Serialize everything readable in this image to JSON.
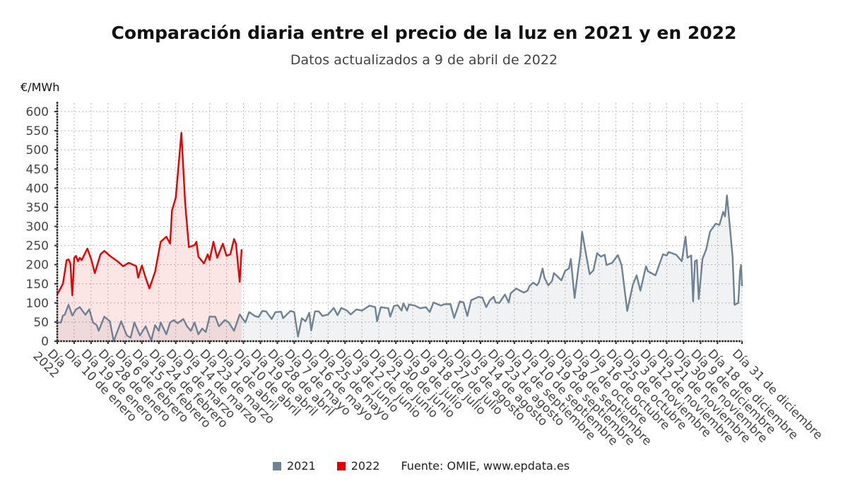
{
  "chart_data": {
    "type": "line",
    "title": "Comparación diaria entre el precio de la luz en 2021 y en 2022",
    "subtitle": "Datos actualizados a 9 de abril de 2022",
    "ylabel": "€/MWh",
    "xlabel": "",
    "ylim": [
      0,
      600
    ],
    "yticks": [
      0,
      50,
      100,
      150,
      200,
      250,
      300,
      350,
      400,
      450,
      500,
      550,
      600
    ],
    "xlim_day_of_year": [
      1,
      365
    ],
    "grid": true,
    "legend_position": "bottom",
    "xticks": [
      {
        "day": 1,
        "label": "Día\n2022"
      },
      {
        "day": 10,
        "label": "Día 10 de enero"
      },
      {
        "day": 19,
        "label": "Día 19 de enero"
      },
      {
        "day": 28,
        "label": "Día 28 de enero"
      },
      {
        "day": 37,
        "label": "Día 6 de febrero"
      },
      {
        "day": 46,
        "label": "Día 15 de febrero"
      },
      {
        "day": 55,
        "label": "Día 24 de febrero"
      },
      {
        "day": 64,
        "label": "Día 5 de marzo"
      },
      {
        "day": 73,
        "label": "Día 14 de marzo"
      },
      {
        "day": 82,
        "label": "Día 23 de marzo"
      },
      {
        "day": 91,
        "label": "Día 1 de abril"
      },
      {
        "day": 100,
        "label": "Día 10 de abril"
      },
      {
        "day": 109,
        "label": "Día 19 de abril"
      },
      {
        "day": 118,
        "label": "Día 28 de abril"
      },
      {
        "day": 127,
        "label": "Día 7 de mayo"
      },
      {
        "day": 136,
        "label": "Día 16 de mayo"
      },
      {
        "day": 145,
        "label": "Día 25 de mayo"
      },
      {
        "day": 154,
        "label": "Día 3 de junio"
      },
      {
        "day": 163,
        "label": "Día 12 de junio"
      },
      {
        "day": 172,
        "label": "Día 21 de junio"
      },
      {
        "day": 181,
        "label": "Día 30 de junio"
      },
      {
        "day": 190,
        "label": "Día 9 de julio"
      },
      {
        "day": 199,
        "label": "Día 18 de julio"
      },
      {
        "day": 208,
        "label": "Día 27 de julio"
      },
      {
        "day": 217,
        "label": "Día 5 de agosto"
      },
      {
        "day": 226,
        "label": "Día 14 de agosto"
      },
      {
        "day": 235,
        "label": "Día 23 de agosto"
      },
      {
        "day": 244,
        "label": "Día 1 de septiembre"
      },
      {
        "day": 253,
        "label": "Día 10 de septiembre"
      },
      {
        "day": 262,
        "label": "Día 19 de septiembre"
      },
      {
        "day": 271,
        "label": "Día 28 de septiembre"
      },
      {
        "day": 280,
        "label": "Día 7 de octubre"
      },
      {
        "day": 289,
        "label": "Día 16 de octubre"
      },
      {
        "day": 298,
        "label": "Día 25 de octubre"
      },
      {
        "day": 307,
        "label": "Día 3 de noviembre"
      },
      {
        "day": 316,
        "label": "Día 12 de noviembre"
      },
      {
        "day": 325,
        "label": "Día 21 de noviembre"
      },
      {
        "day": 334,
        "label": "Día 30 de noviembre"
      },
      {
        "day": 343,
        "label": "Día 9 de diciembre"
      },
      {
        "day": 352,
        "label": "Día 18 de diciembre"
      },
      {
        "day": 365,
        "label": "Día 31 de diciembre"
      }
    ],
    "series": [
      {
        "name": "2021",
        "color": "#6e8293",
        "points": [
          [
            1,
            49
          ],
          [
            3,
            49
          ],
          [
            4,
            67
          ],
          [
            5,
            69
          ],
          [
            7,
            95
          ],
          [
            9,
            67
          ],
          [
            11,
            83
          ],
          [
            13,
            89
          ],
          [
            16,
            69
          ],
          [
            18,
            83
          ],
          [
            20,
            49
          ],
          [
            22,
            42
          ],
          [
            23,
            27
          ],
          [
            26,
            64
          ],
          [
            29,
            52
          ],
          [
            31,
            0
          ],
          [
            35,
            52
          ],
          [
            38,
            15
          ],
          [
            40,
            9
          ],
          [
            42,
            49
          ],
          [
            45,
            15
          ],
          [
            48,
            39
          ],
          [
            51,
            2
          ],
          [
            53,
            42
          ],
          [
            55,
            27
          ],
          [
            56,
            49
          ],
          [
            59,
            18
          ],
          [
            61,
            49
          ],
          [
            63,
            55
          ],
          [
            65,
            47
          ],
          [
            68,
            58
          ],
          [
            70,
            39
          ],
          [
            72,
            27
          ],
          [
            74,
            49
          ],
          [
            76,
            18
          ],
          [
            78,
            33
          ],
          [
            80,
            24
          ],
          [
            82,
            64
          ],
          [
            85,
            64
          ],
          [
            87,
            39
          ],
          [
            90,
            55
          ],
          [
            92,
            50
          ],
          [
            95,
            27
          ],
          [
            98,
            70
          ],
          [
            101,
            49
          ],
          [
            103,
            76
          ],
          [
            106,
            66
          ],
          [
            108,
            63
          ],
          [
            110,
            79
          ],
          [
            112,
            78
          ],
          [
            115,
            58
          ],
          [
            117,
            76
          ],
          [
            120,
            77
          ],
          [
            121,
            60
          ],
          [
            125,
            79
          ],
          [
            127,
            76
          ],
          [
            129,
            12
          ],
          [
            131,
            60
          ],
          [
            133,
            52
          ],
          [
            135,
            74
          ],
          [
            136,
            28
          ],
          [
            138,
            78
          ],
          [
            140,
            78
          ],
          [
            142,
            66
          ],
          [
            145,
            70
          ],
          [
            148,
            87
          ],
          [
            150,
            68
          ],
          [
            152,
            87
          ],
          [
            155,
            80
          ],
          [
            157,
            70
          ],
          [
            160,
            83
          ],
          [
            163,
            80
          ],
          [
            167,
            93
          ],
          [
            170,
            89
          ],
          [
            171,
            52
          ],
          [
            173,
            89
          ],
          [
            177,
            86
          ],
          [
            178,
            64
          ],
          [
            180,
            92
          ],
          [
            182,
            94
          ],
          [
            184,
            80
          ],
          [
            185,
            99
          ],
          [
            187,
            80
          ],
          [
            188,
            96
          ],
          [
            191,
            93
          ],
          [
            194,
            86
          ],
          [
            197,
            89
          ],
          [
            199,
            76
          ],
          [
            201,
            101
          ],
          [
            205,
            93
          ],
          [
            207,
            97
          ],
          [
            210,
            97
          ],
          [
            212,
            61
          ],
          [
            215,
            104
          ],
          [
            217,
            101
          ],
          [
            219,
            66
          ],
          [
            221,
            107
          ],
          [
            225,
            116
          ],
          [
            227,
            114
          ],
          [
            229,
            89
          ],
          [
            231,
            107
          ],
          [
            233,
            116
          ],
          [
            234,
            101
          ],
          [
            236,
            100
          ],
          [
            239,
            122
          ],
          [
            241,
            101
          ],
          [
            242,
            125
          ],
          [
            245,
            138
          ],
          [
            247,
            132
          ],
          [
            249,
            127
          ],
          [
            251,
            132
          ],
          [
            252,
            144
          ],
          [
            254,
            153
          ],
          [
            256,
            146
          ],
          [
            257,
            153
          ],
          [
            259,
            190
          ],
          [
            260,
            166
          ],
          [
            262,
            146
          ],
          [
            264,
            157
          ],
          [
            265,
            178
          ],
          [
            267,
            169
          ],
          [
            269,
            159
          ],
          [
            271,
            184
          ],
          [
            273,
            190
          ],
          [
            274,
            215
          ],
          [
            276,
            113
          ],
          [
            278,
            190
          ],
          [
            279,
            224
          ],
          [
            280,
            286
          ],
          [
            282,
            230
          ],
          [
            284,
            175
          ],
          [
            286,
            185
          ],
          [
            288,
            230
          ],
          [
            290,
            221
          ],
          [
            292,
            226
          ],
          [
            293,
            199
          ],
          [
            296,
            205
          ],
          [
            299,
            225
          ],
          [
            301,
            199
          ],
          [
            304,
            79
          ],
          [
            307,
            148
          ],
          [
            309,
            172
          ],
          [
            311,
            132
          ],
          [
            314,
            196
          ],
          [
            315,
            183
          ],
          [
            319,
            172
          ],
          [
            323,
            227
          ],
          [
            325,
            224
          ],
          [
            326,
            233
          ],
          [
            330,
            226
          ],
          [
            333,
            209
          ],
          [
            335,
            273
          ],
          [
            336,
            218
          ],
          [
            338,
            224
          ],
          [
            339,
            104
          ],
          [
            340,
            209
          ],
          [
            341,
            212
          ],
          [
            342,
            110
          ],
          [
            344,
            215
          ],
          [
            346,
            240
          ],
          [
            348,
            286
          ],
          [
            351,
            307
          ],
          [
            353,
            304
          ],
          [
            355,
            338
          ],
          [
            356,
            326
          ],
          [
            357,
            381
          ],
          [
            360,
            221
          ],
          [
            361,
            95
          ],
          [
            363,
            100
          ],
          [
            364,
            184
          ],
          [
            364.5,
            199
          ],
          [
            365,
            144
          ]
        ]
      },
      {
        "name": "2022",
        "color": "#e60000",
        "points": [
          [
            1,
            122
          ],
          [
            4,
            150
          ],
          [
            6,
            212
          ],
          [
            7,
            214
          ],
          [
            8,
            203
          ],
          [
            9,
            120
          ],
          [
            10,
            218
          ],
          [
            11,
            223
          ],
          [
            12,
            209
          ],
          [
            13,
            218
          ],
          [
            14,
            212
          ],
          [
            17,
            242
          ],
          [
            19,
            215
          ],
          [
            21,
            178
          ],
          [
            24,
            227
          ],
          [
            26,
            236
          ],
          [
            29,
            223
          ],
          [
            33,
            209
          ],
          [
            36,
            196
          ],
          [
            39,
            205
          ],
          [
            43,
            196
          ],
          [
            44,
            166
          ],
          [
            46,
            198
          ],
          [
            48,
            166
          ],
          [
            50,
            138
          ],
          [
            53,
            181
          ],
          [
            56,
            260
          ],
          [
            59,
            273
          ],
          [
            61,
            255
          ],
          [
            62,
            342
          ],
          [
            64,
            375
          ],
          [
            67,
            545
          ],
          [
            69,
            362
          ],
          [
            71,
            246
          ],
          [
            74,
            251
          ],
          [
            75,
            260
          ],
          [
            76,
            221
          ],
          [
            79,
            203
          ],
          [
            81,
            227
          ],
          [
            82,
            212
          ],
          [
            84,
            260
          ],
          [
            86,
            218
          ],
          [
            89,
            255
          ],
          [
            91,
            223
          ],
          [
            93,
            227
          ],
          [
            95,
            267
          ],
          [
            96,
            255
          ],
          [
            98,
            155
          ],
          [
            99,
            240
          ]
        ]
      }
    ],
    "source": "Fuente: OMIE, www.epdata.es"
  }
}
